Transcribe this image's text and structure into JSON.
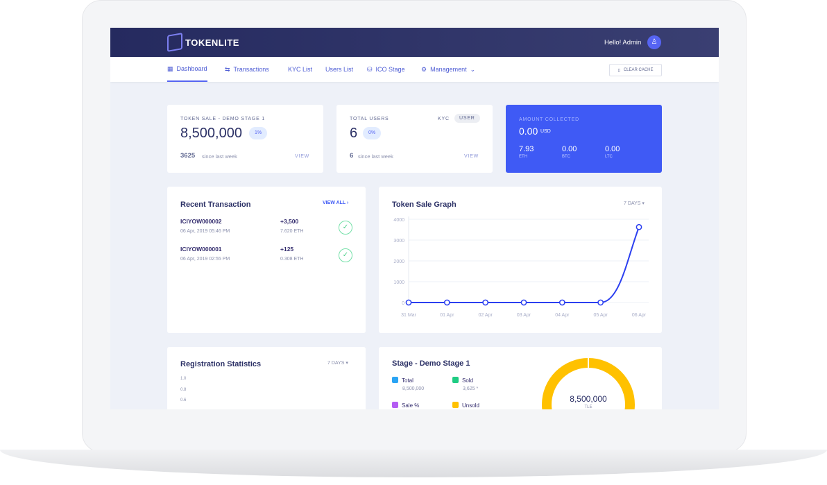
{
  "header": {
    "brand": "TOKENLITE",
    "greeting": "Hello! Admin"
  },
  "nav": {
    "items": [
      {
        "label": "Dashboard",
        "icon": "grid-icon"
      },
      {
        "label": "Transactions",
        "icon": "swap-icon"
      },
      {
        "label": "KYC List"
      },
      {
        "label": "Users List"
      },
      {
        "label": "ICO Stage",
        "icon": "coins-icon"
      },
      {
        "label": "Management",
        "icon": "gear-icon"
      }
    ],
    "clear_cache": "CLEAR CACHE"
  },
  "token_sale": {
    "title": "TOKEN SALE - DEMO STAGE 1",
    "value": "8,500,000",
    "badge": "1%",
    "since_value": "3625",
    "since_label": "since last week",
    "view": "VIEW"
  },
  "users": {
    "title": "TOTAL USERS",
    "tab_kyc": "KYC",
    "tab_user": "USER",
    "value": "6",
    "badge": "0%",
    "since_value": "6",
    "since_label": "since last week",
    "view": "VIEW"
  },
  "amount": {
    "title": "AMOUNT COLLECTED",
    "value": "0.00",
    "unit": "USD",
    "coins": [
      {
        "value": "7.93",
        "label": "ETH"
      },
      {
        "value": "0.00",
        "label": "BTC"
      },
      {
        "value": "0.00",
        "label": "LTC"
      }
    ],
    "color": "#3f5af5"
  },
  "recent": {
    "title": "Recent Transaction",
    "view_all": "VIEW ALL",
    "rows": [
      {
        "id": "ICIYOW000002",
        "date": "06 Apr, 2019 05:46 PM",
        "amount": "+3,500",
        "eth": "7.620 ETH"
      },
      {
        "id": "ICIYOW000001",
        "date": "06 Apr, 2019 02:55 PM",
        "amount": "+125",
        "eth": "0.308 ETH"
      }
    ]
  },
  "graph": {
    "title": "Token Sale Graph",
    "range": "7 DAYS"
  },
  "chart_data": {
    "type": "line",
    "categories": [
      "31 Mar",
      "01 Apr",
      "02 Apr",
      "03 Apr",
      "04 Apr",
      "05 Apr",
      "06 Apr"
    ],
    "values": [
      0,
      0,
      0,
      0,
      0,
      0,
      3625
    ],
    "yticks": [
      0,
      1000,
      2000,
      3000,
      4000
    ],
    "ylim": [
      0,
      4000
    ],
    "grid": true,
    "color": "#2b3ff0"
  },
  "registration": {
    "title": "Registration Statistics",
    "range": "7 DAYS",
    "yticks": [
      "1.0",
      "0.8",
      "0.6"
    ]
  },
  "stage": {
    "title": "Stage - Demo Stage 1",
    "legend": [
      {
        "label": "Total",
        "value": "8,500,000",
        "color": "#2aa4f4"
      },
      {
        "label": "Sold",
        "value": "3,625 *",
        "color": "#1fcc83"
      },
      {
        "label": "Sale %",
        "value": "",
        "color": "#b45cf3"
      },
      {
        "label": "Unsold",
        "value": "",
        "color": "#ffc100"
      }
    ],
    "donut_value": "8,500,000",
    "donut_unit": "TLE"
  }
}
